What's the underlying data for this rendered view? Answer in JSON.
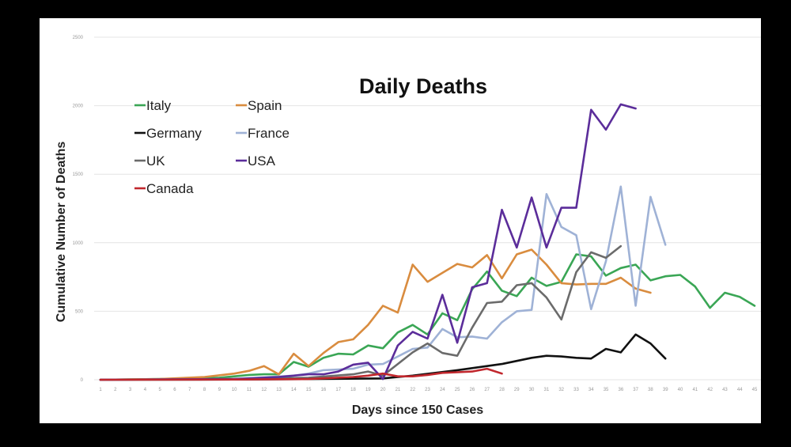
{
  "chart_data": {
    "type": "line",
    "title": "Daily Deaths",
    "xlabel": "Days since 150 Cases",
    "ylabel": "Cumulative Number of Deaths",
    "ylim": [
      0,
      2500
    ],
    "yticks": [
      0,
      500,
      1000,
      1500,
      2000,
      2500
    ],
    "xlim": [
      1,
      45
    ],
    "xticks": [
      1,
      2,
      3,
      4,
      5,
      6,
      7,
      8,
      9,
      10,
      11,
      12,
      13,
      14,
      15,
      16,
      17,
      18,
      19,
      20,
      21,
      22,
      23,
      24,
      25,
      26,
      27,
      28,
      29,
      30,
      31,
      32,
      33,
      34,
      35,
      36,
      37,
      38,
      39,
      40,
      41,
      42,
      43,
      44,
      45
    ],
    "grid": true,
    "legend_position": "top-left",
    "series": [
      {
        "name": "Italy",
        "color": "#3aa655",
        "x": [
          1,
          5,
          9,
          11,
          12,
          13,
          14,
          15,
          16,
          17,
          18,
          19,
          20,
          21,
          22,
          23,
          24,
          25,
          26,
          27,
          28,
          29,
          30,
          31,
          32,
          33,
          34,
          35,
          36,
          37,
          38,
          39,
          40,
          41,
          42,
          43,
          44,
          45
        ],
        "y": [
          0,
          5,
          15,
          35,
          40,
          40,
          130,
          95,
          160,
          190,
          185,
          250,
          230,
          345,
          400,
          330,
          485,
          435,
          660,
          790,
          650,
          610,
          745,
          685,
          715,
          915,
          900,
          760,
          815,
          840,
          725,
          755,
          765,
          680,
          525,
          635,
          605,
          540
        ]
      },
      {
        "name": "Spain",
        "color": "#d98c3f",
        "x": [
          1,
          5,
          8,
          10,
          11,
          12,
          13,
          14,
          15,
          16,
          17,
          18,
          19,
          20,
          21,
          22,
          23,
          24,
          25,
          26,
          27,
          28,
          29,
          30,
          31,
          32,
          33,
          34,
          35,
          36,
          37,
          38
        ],
        "y": [
          0,
          5,
          20,
          45,
          65,
          100,
          40,
          190,
          100,
          195,
          275,
          295,
          400,
          540,
          490,
          840,
          715,
          780,
          845,
          820,
          910,
          740,
          915,
          950,
          840,
          705,
          695,
          700,
          700,
          745,
          665,
          635
        ]
      },
      {
        "name": "Germany",
        "color": "#111111",
        "x": [
          1,
          10,
          15,
          20,
          22,
          25,
          28,
          30,
          31,
          32,
          33,
          34,
          35,
          36,
          37,
          38,
          39
        ],
        "y": [
          0,
          2,
          5,
          10,
          30,
          70,
          115,
          160,
          175,
          170,
          160,
          155,
          225,
          200,
          330,
          265,
          155
        ]
      },
      {
        "name": "France",
        "color": "#9fb2d6",
        "x": [
          1,
          10,
          14,
          15,
          16,
          17,
          18,
          19,
          20,
          21,
          22,
          23,
          24,
          25,
          26,
          27,
          28,
          29,
          30,
          31,
          32,
          33,
          34,
          35,
          36,
          37,
          38,
          39
        ],
        "y": [
          0,
          5,
          30,
          45,
          70,
          75,
          80,
          110,
          115,
          170,
          225,
          235,
          370,
          310,
          315,
          300,
          420,
          500,
          510,
          1355,
          1115,
          1055,
          515,
          865,
          1410,
          540,
          1335,
          985
        ]
      },
      {
        "name": "UK",
        "color": "#6b6b6b",
        "x": [
          1,
          10,
          15,
          18,
          19,
          20,
          21,
          22,
          23,
          24,
          25,
          26,
          27,
          28,
          29,
          30,
          31,
          32,
          33,
          34,
          35,
          36
        ],
        "y": [
          0,
          5,
          15,
          40,
          60,
          30,
          115,
          200,
          265,
          195,
          175,
          380,
          560,
          570,
          690,
          705,
          600,
          440,
          785,
          930,
          890,
          975
        ]
      },
      {
        "name": "USA",
        "color": "#5b2d9a",
        "x": [
          1,
          10,
          13,
          15,
          16,
          17,
          18,
          19,
          20,
          21,
          22,
          23,
          24,
          25,
          26,
          27,
          28,
          29,
          30,
          31,
          32,
          33,
          34,
          35,
          36,
          37
        ],
        "y": [
          0,
          5,
          20,
          40,
          40,
          60,
          110,
          125,
          5,
          250,
          350,
          300,
          620,
          270,
          675,
          705,
          1240,
          965,
          1330,
          965,
          1255,
          1255,
          1970,
          1825,
          2010,
          1980
        ]
      },
      {
        "name": "Canada",
        "color": "#c1272d",
        "x": [
          1,
          10,
          15,
          18,
          19,
          20,
          21,
          22,
          23,
          24,
          25,
          26,
          27,
          28
        ],
        "y": [
          0,
          2,
          5,
          20,
          30,
          45,
          25,
          25,
          35,
          50,
          55,
          60,
          80,
          45
        ]
      }
    ]
  }
}
